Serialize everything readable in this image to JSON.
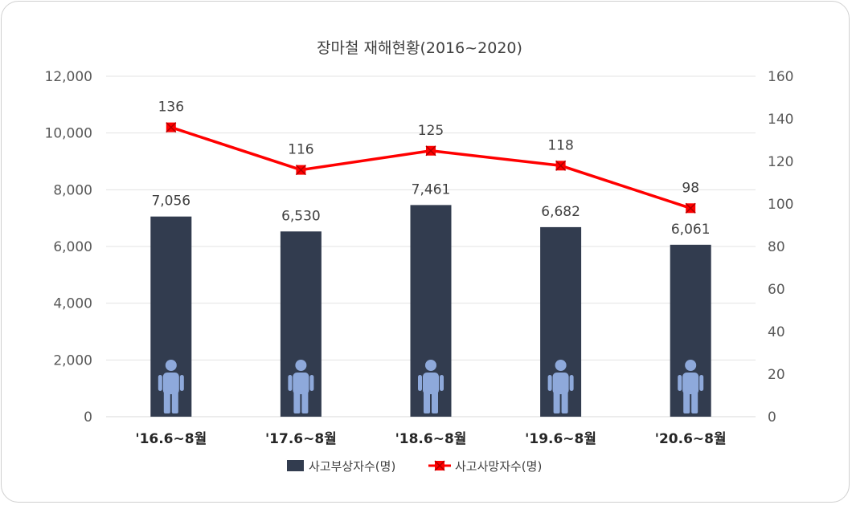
{
  "chart_data": {
    "type": "bar",
    "title": "장마철 재해현황(2016~2020)",
    "categories": [
      "'16.6~8월",
      "'17.6~8월",
      "'18.6~8월",
      "'19.6~8월",
      "'20.6~8월"
    ],
    "series": [
      {
        "name": "사고부상자수(명)",
        "type": "bar",
        "axis": "left",
        "color": "#323c4f",
        "values": [
          7056,
          6530,
          7461,
          6682,
          6061
        ],
        "labels": [
          "7,056",
          "6,530",
          "7,461",
          "6,682",
          "6,061"
        ]
      },
      {
        "name": "사고사망자수(명)",
        "type": "line",
        "axis": "right",
        "color": "#ff0000",
        "values": [
          136,
          116,
          125,
          118,
          98
        ],
        "labels": [
          "136",
          "116",
          "125",
          "118",
          "98"
        ]
      }
    ],
    "y_left": {
      "range": [
        0,
        12000
      ],
      "ticks": [
        "0",
        "2,000",
        "4,000",
        "6,000",
        "8,000",
        "10,000",
        "12,000"
      ]
    },
    "y_right": {
      "range": [
        0,
        160
      ],
      "ticks": [
        "0",
        "20",
        "40",
        "60",
        "80",
        "100",
        "120",
        "140",
        "160"
      ]
    },
    "grid": true,
    "legend_position": "bottom",
    "bar_icon": "person-icon",
    "icon_color": "#8ea9db"
  }
}
